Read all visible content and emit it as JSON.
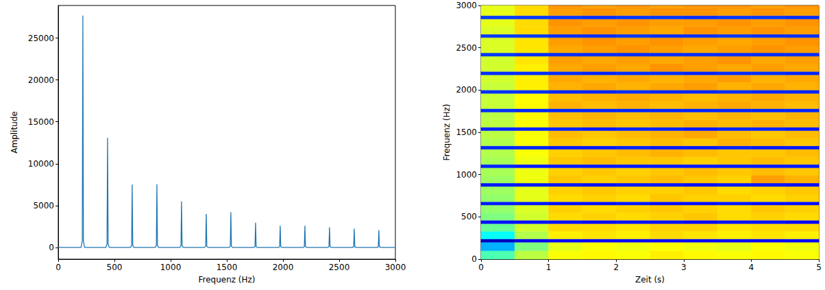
{
  "chart_data": [
    {
      "type": "line",
      "x_label": "Frequenz (Hz)",
      "y_label": "Amplitude",
      "x": [
        0,
        204,
        214,
        219,
        224,
        234,
        424,
        434,
        439,
        444,
        454,
        643,
        653,
        658,
        663,
        673,
        863,
        873,
        878,
        883,
        893,
        1082,
        1092,
        1097,
        1102,
        1112,
        1302,
        1312,
        1317,
        1322,
        1332,
        1521,
        1531,
        1536,
        1541,
        1551,
        1741,
        1751,
        1756,
        1761,
        1771,
        1960,
        1970,
        1975,
        1980,
        1990,
        2180,
        2190,
        2195,
        2200,
        2210,
        2399,
        2409,
        2414,
        2419,
        2429,
        2619,
        2629,
        2634,
        2639,
        2649,
        2838,
        2848,
        2853,
        2858,
        2868,
        3000
      ],
      "values": [
        0,
        0,
        800,
        27700,
        800,
        0,
        0,
        400,
        13100,
        400,
        0,
        0,
        250,
        7500,
        250,
        0,
        0,
        250,
        7550,
        250,
        0,
        0,
        200,
        5500,
        200,
        0,
        0,
        150,
        4000,
        150,
        0,
        0,
        150,
        4200,
        150,
        0,
        0,
        100,
        2950,
        100,
        0,
        0,
        100,
        2600,
        100,
        0,
        0,
        100,
        2600,
        100,
        0,
        0,
        100,
        2400,
        100,
        0,
        0,
        80,
        2250,
        80,
        0,
        0,
        80,
        2050,
        80,
        0,
        0
      ],
      "color": "#1f77b4",
      "xlim": [
        0,
        3000
      ],
      "xticks": [
        0,
        500,
        1000,
        1500,
        2000,
        2500,
        3000
      ],
      "ylim": [
        -1400,
        28900
      ],
      "yticks": [
        0,
        5000,
        10000,
        15000,
        20000,
        25000
      ],
      "grid": false
    },
    {
      "type": "heatmap",
      "x_label": "Zeit (s)",
      "y_label": "Frequenz (Hz)",
      "xlim": [
        0,
        5
      ],
      "xticks": [
        0,
        1,
        2,
        3,
        4,
        5
      ],
      "ylim": [
        0,
        3000
      ],
      "yticks": [
        0,
        500,
        1000,
        1500,
        2000,
        2500,
        3000
      ],
      "x_bins": [
        0,
        0.5,
        1,
        1.5,
        2,
        2.5,
        3,
        3.5,
        4,
        4.5,
        5
      ],
      "y_bins": [
        0,
        100,
        200,
        240,
        330,
        420,
        460,
        550,
        640,
        680,
        770,
        860,
        900,
        990,
        1080,
        1120,
        1210,
        1300,
        1340,
        1430,
        1520,
        1560,
        1650,
        1740,
        1780,
        1870,
        1960,
        2000,
        2090,
        2180,
        2220,
        2310,
        2400,
        2440,
        2530,
        2620,
        2660,
        2750,
        2840,
        2880,
        2970,
        3000
      ],
      "color_range": [
        0,
        1
      ],
      "cells": [
        [
          0.45,
          0.56,
          0.62,
          0.63,
          0.62,
          0.64,
          0.63,
          0.62,
          0.63,
          0.62
        ],
        [
          0.3,
          0.5,
          0.6,
          0.62,
          0.61,
          0.62,
          0.61,
          0.6,
          0.62,
          0.61
        ],
        [
          0.06,
          0.11,
          0.13,
          0.13,
          0.12,
          0.13,
          0.13,
          0.12,
          0.13,
          0.13
        ],
        [
          0.38,
          0.55,
          0.64,
          0.65,
          0.64,
          0.66,
          0.65,
          0.64,
          0.65,
          0.64
        ],
        [
          0.48,
          0.58,
          0.66,
          0.66,
          0.65,
          0.67,
          0.67,
          0.65,
          0.66,
          0.66
        ],
        [
          0.14,
          0.14,
          0.14,
          0.13,
          0.14,
          0.14,
          0.13,
          0.14,
          0.14,
          0.13
        ],
        [
          0.5,
          0.58,
          0.66,
          0.67,
          0.66,
          0.67,
          0.68,
          0.66,
          0.67,
          0.66
        ],
        [
          0.52,
          0.59,
          0.67,
          0.66,
          0.67,
          0.68,
          0.67,
          0.66,
          0.68,
          0.67
        ],
        [
          0.15,
          0.15,
          0.14,
          0.14,
          0.15,
          0.14,
          0.14,
          0.15,
          0.14,
          0.14
        ],
        [
          0.52,
          0.6,
          0.66,
          0.67,
          0.66,
          0.68,
          0.67,
          0.67,
          0.66,
          0.67
        ],
        [
          0.53,
          0.6,
          0.67,
          0.68,
          0.67,
          0.67,
          0.68,
          0.66,
          0.67,
          0.68
        ],
        [
          0.15,
          0.15,
          0.15,
          0.14,
          0.15,
          0.15,
          0.14,
          0.15,
          0.15,
          0.14
        ],
        [
          0.53,
          0.61,
          0.68,
          0.67,
          0.68,
          0.69,
          0.68,
          0.67,
          0.72,
          0.7
        ],
        [
          0.54,
          0.61,
          0.67,
          0.68,
          0.67,
          0.68,
          0.69,
          0.68,
          0.69,
          0.68
        ],
        [
          0.16,
          0.15,
          0.15,
          0.15,
          0.15,
          0.15,
          0.15,
          0.15,
          0.15,
          0.15
        ],
        [
          0.54,
          0.61,
          0.68,
          0.69,
          0.68,
          0.68,
          0.67,
          0.68,
          0.69,
          0.68
        ],
        [
          0.55,
          0.62,
          0.67,
          0.68,
          0.69,
          0.7,
          0.69,
          0.68,
          0.68,
          0.69
        ],
        [
          0.16,
          0.16,
          0.15,
          0.15,
          0.16,
          0.15,
          0.15,
          0.16,
          0.15,
          0.15
        ],
        [
          0.55,
          0.62,
          0.68,
          0.67,
          0.68,
          0.69,
          0.68,
          0.7,
          0.69,
          0.68
        ],
        [
          0.56,
          0.62,
          0.69,
          0.68,
          0.69,
          0.7,
          0.71,
          0.69,
          0.68,
          0.69
        ],
        [
          0.16,
          0.16,
          0.16,
          0.15,
          0.16,
          0.16,
          0.15,
          0.16,
          0.16,
          0.15
        ],
        [
          0.56,
          0.62,
          0.68,
          0.69,
          0.68,
          0.69,
          0.7,
          0.69,
          0.7,
          0.69
        ],
        [
          0.56,
          0.63,
          0.69,
          0.7,
          0.69,
          0.7,
          0.69,
          0.7,
          0.69,
          0.7
        ],
        [
          0.17,
          0.16,
          0.16,
          0.16,
          0.16,
          0.16,
          0.16,
          0.16,
          0.16,
          0.16
        ],
        [
          0.57,
          0.63,
          0.7,
          0.69,
          0.7,
          0.69,
          0.7,
          0.71,
          0.7,
          0.69
        ],
        [
          0.57,
          0.63,
          0.69,
          0.7,
          0.71,
          0.7,
          0.69,
          0.7,
          0.71,
          0.7
        ],
        [
          0.17,
          0.17,
          0.16,
          0.16,
          0.17,
          0.16,
          0.16,
          0.17,
          0.16,
          0.16
        ],
        [
          0.57,
          0.64,
          0.7,
          0.71,
          0.7,
          0.71,
          0.72,
          0.7,
          0.71,
          0.7
        ],
        [
          0.58,
          0.64,
          0.71,
          0.7,
          0.71,
          0.7,
          0.71,
          0.72,
          0.7,
          0.71
        ],
        [
          0.17,
          0.17,
          0.17,
          0.16,
          0.17,
          0.17,
          0.16,
          0.17,
          0.17,
          0.16
        ],
        [
          0.58,
          0.64,
          0.71,
          0.72,
          0.71,
          0.73,
          0.72,
          0.71,
          0.72,
          0.71
        ],
        [
          0.58,
          0.65,
          0.72,
          0.71,
          0.72,
          0.71,
          0.72,
          0.73,
          0.71,
          0.72
        ],
        [
          0.18,
          0.17,
          0.17,
          0.17,
          0.17,
          0.17,
          0.17,
          0.17,
          0.17,
          0.17
        ],
        [
          0.59,
          0.65,
          0.71,
          0.72,
          0.73,
          0.72,
          0.71,
          0.72,
          0.73,
          0.72
        ],
        [
          0.59,
          0.65,
          0.72,
          0.73,
          0.72,
          0.73,
          0.72,
          0.71,
          0.72,
          0.73
        ],
        [
          0.18,
          0.18,
          0.17,
          0.17,
          0.18,
          0.17,
          0.17,
          0.18,
          0.17,
          0.17
        ],
        [
          0.59,
          0.66,
          0.72,
          0.73,
          0.72,
          0.71,
          0.73,
          0.72,
          0.73,
          0.72
        ],
        [
          0.6,
          0.66,
          0.73,
          0.72,
          0.73,
          0.72,
          0.72,
          0.73,
          0.72,
          0.73
        ],
        [
          0.18,
          0.18,
          0.18,
          0.17,
          0.18,
          0.18,
          0.17,
          0.18,
          0.18,
          0.17
        ],
        [
          0.6,
          0.66,
          0.72,
          0.73,
          0.72,
          0.73,
          0.73,
          0.72,
          0.73,
          0.72
        ],
        [
          0.6,
          0.66,
          0.73,
          0.72,
          0.73,
          0.72,
          0.73,
          0.73,
          0.72,
          0.73
        ]
      ],
      "grid": false
    }
  ]
}
